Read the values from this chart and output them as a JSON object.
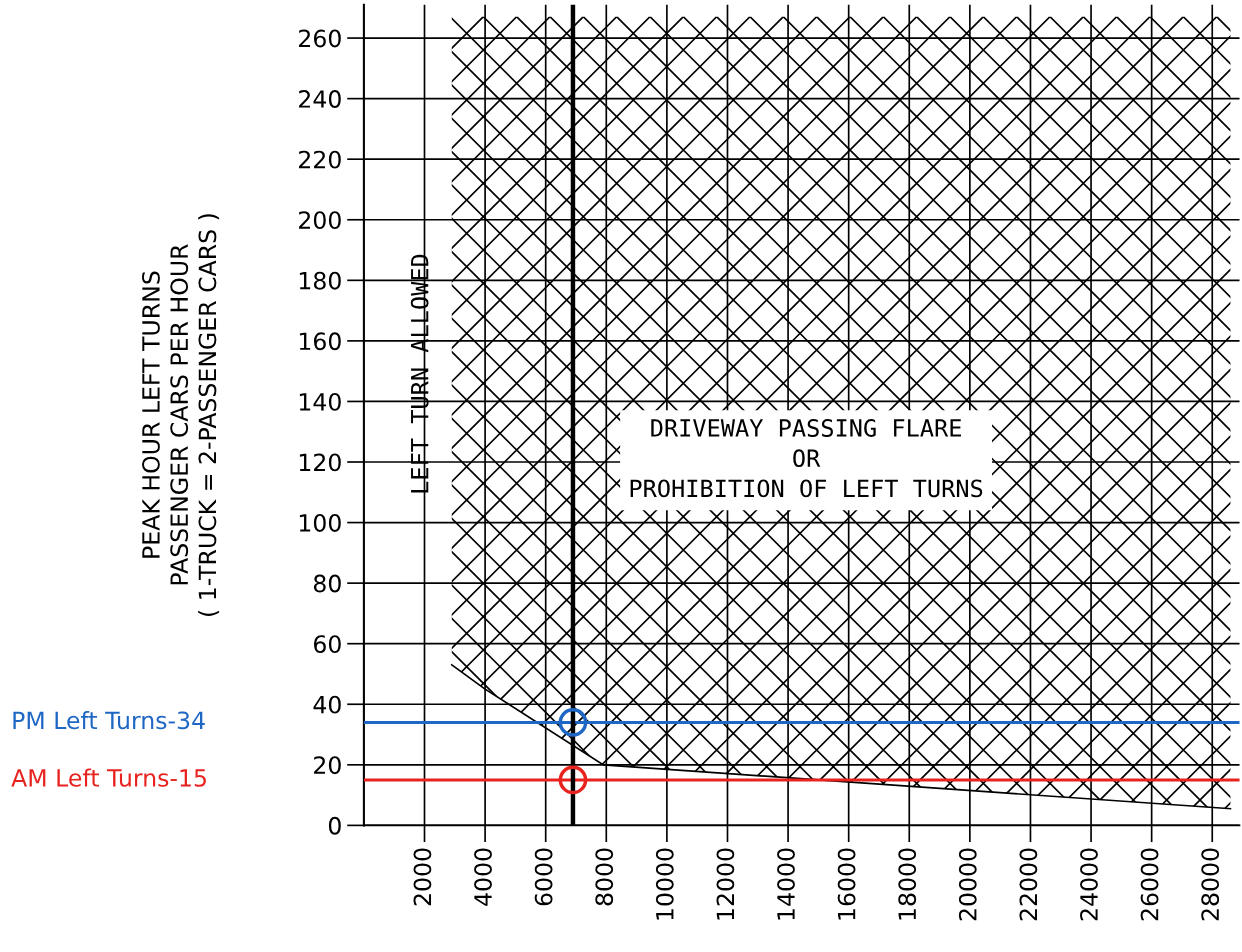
{
  "chart_data": {
    "type": "line",
    "ylabel": "PEAK HOUR LEFT TURNS\nPASSENGER CARS PER HOUR\n( 1-TRUCK = 2-PASSENGER CARS )",
    "x": [
      2900,
      4000,
      7900,
      28600
    ],
    "series": [
      {
        "color": "#000000",
        "values": [
          53,
          45,
          20,
          5.5
        ],
        "lower": [
          53,
          45,
          20,
          5.5
        ],
        "upper": [
          267,
          267,
          267,
          267
        ]
      },
      {
        "type": "scatter",
        "x": [
          6900,
          6900
        ],
        "values": [
          15,
          34
        ],
        "colors": [
          "#e8231f",
          "#1f67c4"
        ],
        "marker": "circle"
      }
    ],
    "ref_lines": [
      {
        "axis": "y",
        "value": 15,
        "label": "AM Left Turns-15",
        "color": "#e8231f"
      },
      {
        "axis": "y",
        "value": 34,
        "label": "PM Left Turns-34",
        "color": "#1f67c4"
      },
      {
        "axis": "x",
        "value": 6900,
        "color": "#000000"
      }
    ],
    "annotations": [
      "LEFT TURN ALLOWED",
      "DRIVEWAY PASSING FLARE\nOR\nPROHIBITION OF LEFT TURNS"
    ],
    "xlim": [
      0,
      28900
    ],
    "ylim": [
      0,
      271
    ],
    "xticks": [
      2000,
      4000,
      6000,
      8000,
      10000,
      12000,
      14000,
      16000,
      18000,
      20000,
      22000,
      24000,
      26000,
      28000
    ],
    "yticks": [
      0,
      20,
      40,
      60,
      80,
      100,
      120,
      140,
      160,
      180,
      200,
      220,
      240,
      260
    ],
    "grid": true
  }
}
